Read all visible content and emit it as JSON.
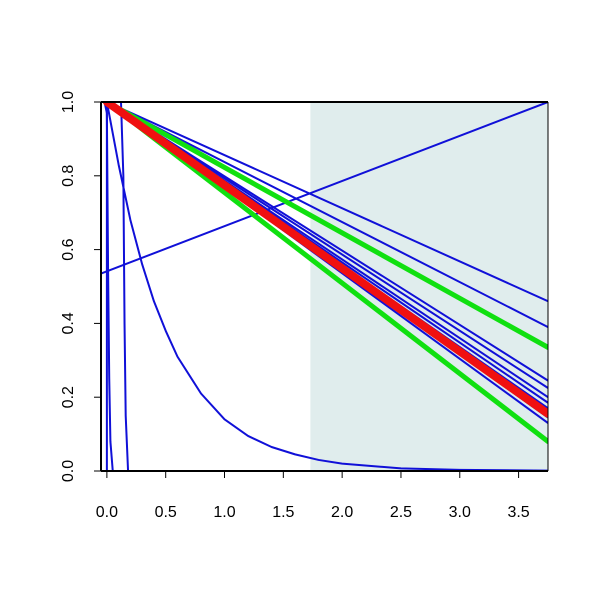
{
  "chart_data": {
    "type": "line",
    "title": "",
    "xlabel": "",
    "ylabel": "",
    "xlim": [
      -0.05,
      3.75
    ],
    "ylim": [
      0.0,
      1.0
    ],
    "grid": false,
    "x_ticks": [
      "0.0",
      "0.5",
      "1.0",
      "1.5",
      "2.0",
      "2.5",
      "3.0",
      "3.5"
    ],
    "y_ticks": [
      "0.0",
      "0.2",
      "0.4",
      "0.6",
      "0.8",
      "1.0"
    ],
    "shaded_region": {
      "x_from": 1.73,
      "x_to": 3.75,
      "color": "#e0eded"
    },
    "colors": {
      "blue": "#1010d8",
      "green": "#10e010",
      "red": "#f01010",
      "shade": "#e0eded",
      "axis": "#000000"
    },
    "series": [
      {
        "color": "blue",
        "width": 2,
        "points": [
          [
            -0.05,
            1.0
          ],
          [
            0.0,
            1.0
          ],
          [
            0.0,
            0.0
          ]
        ]
      },
      {
        "color": "blue",
        "width": 2,
        "points": [
          [
            -0.02,
            1.0
          ],
          [
            0.0,
            0.97
          ],
          [
            0.01,
            0.55
          ],
          [
            0.02,
            0.25
          ],
          [
            0.03,
            0.08
          ],
          [
            0.05,
            0.0
          ],
          [
            0.07,
            0.0
          ]
        ]
      },
      {
        "color": "blue",
        "width": 2,
        "points": [
          [
            -0.05,
            1.0
          ],
          [
            0.12,
            1.0
          ],
          [
            0.14,
            0.8
          ],
          [
            0.15,
            0.4
          ],
          [
            0.16,
            0.15
          ],
          [
            0.18,
            0.0
          ],
          [
            0.2,
            0.0
          ]
        ]
      },
      {
        "color": "blue",
        "width": 2,
        "points": [
          [
            0.0,
            1.0
          ],
          [
            0.1,
            0.83
          ],
          [
            0.2,
            0.68
          ],
          [
            0.3,
            0.56
          ],
          [
            0.4,
            0.46
          ],
          [
            0.5,
            0.38
          ],
          [
            0.6,
            0.31
          ],
          [
            0.8,
            0.21
          ],
          [
            1.0,
            0.14
          ],
          [
            1.2,
            0.095
          ],
          [
            1.4,
            0.065
          ],
          [
            1.6,
            0.045
          ],
          [
            1.8,
            0.03
          ],
          [
            2.0,
            0.02
          ],
          [
            2.5,
            0.007
          ],
          [
            3.0,
            0.003
          ],
          [
            3.75,
            0.001
          ]
        ]
      },
      {
        "color": "blue",
        "width": 2,
        "points": [
          [
            -0.05,
            0.535
          ],
          [
            3.75,
            1.0
          ]
        ]
      },
      {
        "color": "blue",
        "width": 2,
        "points": [
          [
            0.0,
            1.0
          ],
          [
            3.75,
            0.46
          ]
        ]
      },
      {
        "color": "blue",
        "width": 2,
        "points": [
          [
            0.0,
            1.0
          ],
          [
            3.75,
            0.39
          ]
        ]
      },
      {
        "color": "blue",
        "width": 2,
        "points": [
          [
            0.0,
            1.0
          ],
          [
            3.75,
            0.245
          ]
        ]
      },
      {
        "color": "blue",
        "width": 2,
        "points": [
          [
            0.0,
            1.0
          ],
          [
            3.75,
            0.225
          ]
        ]
      },
      {
        "color": "blue",
        "width": 2,
        "points": [
          [
            0.0,
            1.0
          ],
          [
            3.75,
            0.2
          ]
        ]
      },
      {
        "color": "blue",
        "width": 2,
        "points": [
          [
            0.0,
            1.0
          ],
          [
            3.75,
            0.185
          ]
        ]
      },
      {
        "color": "blue",
        "width": 2,
        "points": [
          [
            0.0,
            1.0
          ],
          [
            3.75,
            0.17
          ]
        ]
      },
      {
        "color": "blue",
        "width": 2,
        "points": [
          [
            0.0,
            1.0
          ],
          [
            3.75,
            0.145
          ]
        ]
      },
      {
        "color": "blue",
        "width": 2,
        "points": [
          [
            0.0,
            1.0
          ],
          [
            3.75,
            0.13
          ]
        ]
      },
      {
        "color": "green",
        "width": 5,
        "points": [
          [
            0.0,
            1.0
          ],
          [
            3.75,
            0.335
          ]
        ]
      },
      {
        "color": "green",
        "width": 5,
        "points": [
          [
            0.0,
            1.0
          ],
          [
            3.75,
            0.155
          ]
        ]
      },
      {
        "color": "green",
        "width": 5,
        "points": [
          [
            0.0,
            1.0
          ],
          [
            3.75,
            0.08
          ]
        ]
      },
      {
        "color": "red",
        "width": 8,
        "points": [
          [
            0.0,
            1.0
          ],
          [
            3.75,
            0.155
          ]
        ]
      }
    ]
  }
}
